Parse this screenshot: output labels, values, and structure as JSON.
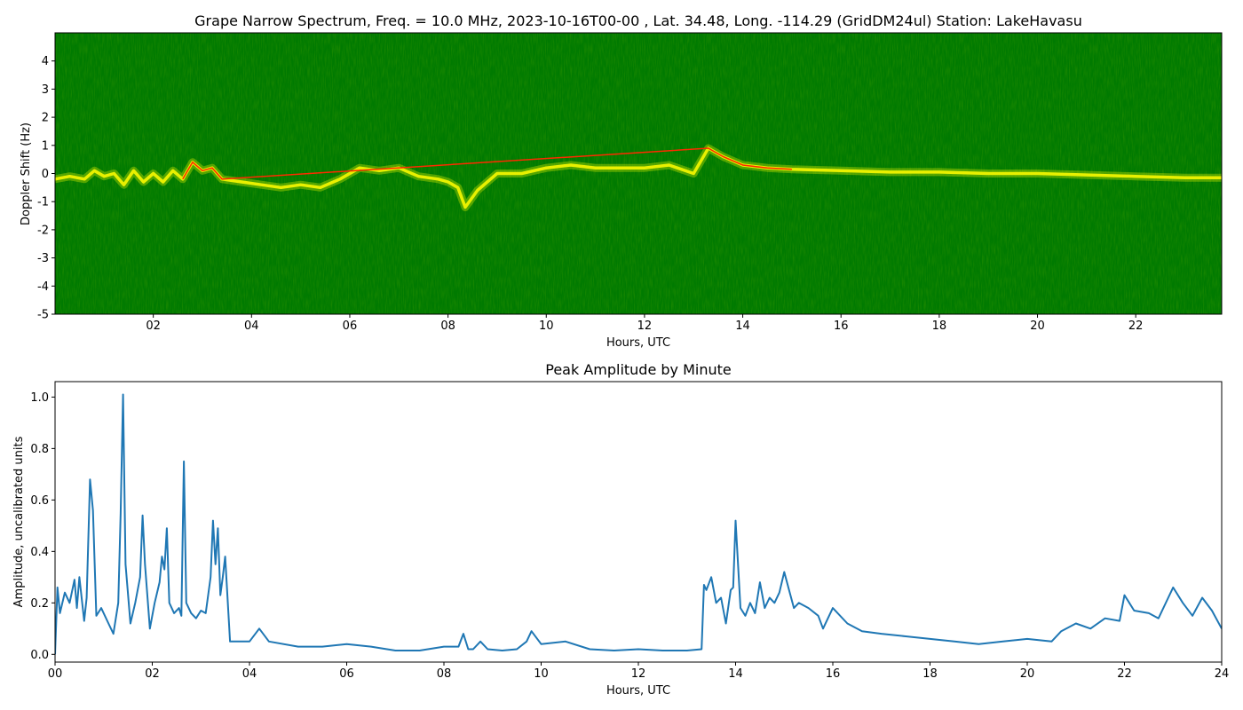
{
  "chart_data": [
    {
      "type": "heatmap",
      "title": "Grape Narrow Spectrum, Freq. = 10.0 MHz, 2023-10-16T00-00 , Lat.  34.48, Long. -114.29 (GridDM24ul) Station: LakeHavasu",
      "xlabel": "Hours, UTC",
      "ylabel": "Doppler Shift (Hz)",
      "xlim": [
        0,
        23.75
      ],
      "ylim": [
        -5,
        5
      ],
      "xtick_labels": [
        "02",
        "04",
        "06",
        "08",
        "10",
        "12",
        "14",
        "16",
        "18",
        "20",
        "22"
      ],
      "xtick_values": [
        2,
        4,
        6,
        8,
        10,
        12,
        14,
        16,
        18,
        20,
        22
      ],
      "ytick_labels": [
        "-5",
        "-4",
        "-3",
        "-2",
        "-1",
        "0",
        "1",
        "2",
        "3",
        "4"
      ],
      "ytick_values": [
        -5,
        -4,
        -3,
        -2,
        -1,
        0,
        1,
        2,
        3,
        4
      ],
      "colors": {
        "background": "#007a00",
        "trace": "#e8f000",
        "peak": "#ff2a00"
      },
      "doppler_trace": {
        "x": [
          0,
          0.3,
          0.6,
          0.8,
          1.0,
          1.2,
          1.4,
          1.6,
          1.8,
          2.0,
          2.2,
          2.4,
          2.6,
          2.8,
          3.0,
          3.2,
          3.4,
          3.8,
          4.2,
          4.6,
          5.0,
          5.4,
          5.8,
          6.2,
          6.6,
          7.0,
          7.4,
          7.8,
          8.0,
          8.2,
          8.35,
          8.6,
          9.0,
          9.5,
          10.0,
          10.5,
          11.0,
          11.5,
          12.0,
          12.5,
          13.0,
          13.3,
          13.6,
          14.0,
          14.5,
          15.0,
          16.0,
          17.0,
          18.0,
          19.0,
          20.0,
          21.0,
          22.0,
          23.0,
          23.75
        ],
        "y": [
          -0.2,
          -0.1,
          -0.2,
          0.1,
          -0.1,
          0.0,
          -0.4,
          0.1,
          -0.3,
          0.0,
          -0.3,
          0.1,
          -0.2,
          0.4,
          0.1,
          0.2,
          -0.2,
          -0.3,
          -0.4,
          -0.5,
          -0.4,
          -0.5,
          -0.2,
          0.2,
          0.1,
          0.2,
          -0.1,
          -0.2,
          -0.3,
          -0.5,
          -1.2,
          -0.6,
          0.0,
          0.0,
          0.2,
          0.3,
          0.2,
          0.2,
          0.2,
          0.3,
          0.0,
          0.9,
          0.6,
          0.3,
          0.2,
          0.15,
          0.1,
          0.05,
          0.05,
          0.0,
          0.0,
          -0.05,
          -0.1,
          -0.15,
          -0.15
        ]
      }
    },
    {
      "type": "line",
      "title": "Peak Amplitude by Minute",
      "xlabel": "Hours, UTC",
      "ylabel": "Amplitude, uncalibrated units",
      "xlim": [
        0,
        24
      ],
      "ylim": [
        -0.03,
        1.06
      ],
      "xtick_labels": [
        "00",
        "02",
        "04",
        "06",
        "08",
        "10",
        "12",
        "14",
        "16",
        "18",
        "20",
        "22",
        "24"
      ],
      "xtick_values": [
        0,
        2,
        4,
        6,
        8,
        10,
        12,
        14,
        16,
        18,
        20,
        22,
        24
      ],
      "ytick_labels": [
        "0.0",
        "0.2",
        "0.4",
        "0.6",
        "0.8",
        "1.0"
      ],
      "ytick_values": [
        0,
        0.2,
        0.4,
        0.6,
        0.8,
        1.0
      ],
      "line_color": "#1f77b4",
      "x": [
        0,
        0.05,
        0.1,
        0.2,
        0.3,
        0.4,
        0.45,
        0.5,
        0.6,
        0.65,
        0.72,
        0.78,
        0.85,
        0.95,
        1.1,
        1.2,
        1.3,
        1.35,
        1.4,
        1.45,
        1.55,
        1.65,
        1.75,
        1.8,
        1.85,
        1.95,
        2.05,
        2.15,
        2.2,
        2.25,
        2.3,
        2.35,
        2.45,
        2.55,
        2.6,
        2.65,
        2.7,
        2.8,
        2.9,
        3.0,
        3.1,
        3.2,
        3.25,
        3.3,
        3.35,
        3.4,
        3.45,
        3.5,
        3.6,
        3.8,
        4.0,
        4.2,
        4.4,
        5.0,
        5.5,
        6.0,
        6.5,
        7.0,
        7.5,
        8.0,
        8.3,
        8.4,
        8.5,
        8.6,
        8.75,
        8.9,
        9.2,
        9.5,
        9.7,
        9.8,
        10.0,
        10.5,
        11.0,
        11.5,
        12.0,
        12.5,
        13.0,
        13.3,
        13.35,
        13.4,
        13.5,
        13.6,
        13.7,
        13.8,
        13.9,
        13.95,
        14.0,
        14.1,
        14.2,
        14.3,
        14.4,
        14.5,
        14.6,
        14.7,
        14.8,
        14.9,
        15.0,
        15.1,
        15.2,
        15.3,
        15.5,
        15.7,
        15.8,
        16.0,
        16.3,
        16.6,
        17.0,
        17.5,
        18.0,
        18.5,
        19.0,
        19.5,
        20.0,
        20.5,
        20.7,
        21.0,
        21.3,
        21.6,
        21.9,
        22.0,
        22.2,
        22.5,
        22.7,
        22.9,
        23.0,
        23.2,
        23.4,
        23.6,
        23.8,
        24.0
      ],
      "y": [
        0.0,
        0.26,
        0.16,
        0.24,
        0.2,
        0.29,
        0.18,
        0.3,
        0.13,
        0.22,
        0.68,
        0.56,
        0.15,
        0.18,
        0.12,
        0.08,
        0.2,
        0.55,
        1.01,
        0.35,
        0.12,
        0.2,
        0.3,
        0.54,
        0.35,
        0.1,
        0.2,
        0.28,
        0.38,
        0.33,
        0.49,
        0.2,
        0.16,
        0.18,
        0.15,
        0.75,
        0.2,
        0.16,
        0.14,
        0.17,
        0.16,
        0.3,
        0.52,
        0.35,
        0.49,
        0.23,
        0.3,
        0.38,
        0.05,
        0.05,
        0.05,
        0.1,
        0.05,
        0.03,
        0.03,
        0.04,
        0.03,
        0.015,
        0.015,
        0.03,
        0.03,
        0.08,
        0.02,
        0.02,
        0.05,
        0.02,
        0.015,
        0.02,
        0.05,
        0.09,
        0.04,
        0.05,
        0.02,
        0.015,
        0.02,
        0.015,
        0.015,
        0.02,
        0.27,
        0.25,
        0.3,
        0.2,
        0.22,
        0.12,
        0.25,
        0.26,
        0.52,
        0.18,
        0.15,
        0.2,
        0.16,
        0.28,
        0.18,
        0.22,
        0.2,
        0.24,
        0.32,
        0.25,
        0.18,
        0.2,
        0.18,
        0.15,
        0.1,
        0.18,
        0.12,
        0.09,
        0.08,
        0.07,
        0.06,
        0.05,
        0.04,
        0.05,
        0.06,
        0.05,
        0.09,
        0.12,
        0.1,
        0.14,
        0.13,
        0.23,
        0.17,
        0.16,
        0.14,
        0.22,
        0.26,
        0.2,
        0.15,
        0.22,
        0.17,
        0.1
      ]
    }
  ]
}
